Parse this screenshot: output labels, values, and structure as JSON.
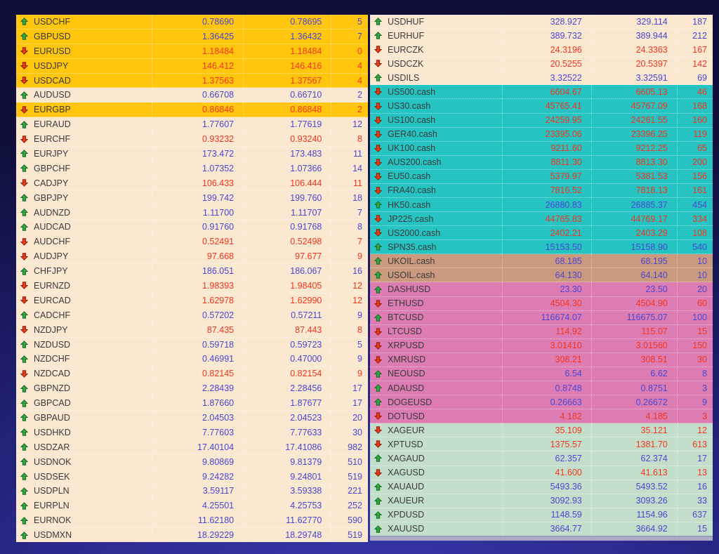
{
  "colors": {
    "gold": "#ffc60d",
    "cream": "#fae8d1",
    "teal": "#25c3c1",
    "tan": "#cb9a7e",
    "pink": "#dc7cb3",
    "mint": "#c3decb",
    "up": "#4946d4",
    "down": "#f4351d",
    "symbol": "#3a3a3a",
    "arrow_up_fill": "#33a643",
    "arrow_up_edge": "#156a22",
    "arrow_down_fill": "#e83a17",
    "arrow_down_edge": "#8f1d05"
  },
  "tables": {
    "left": {
      "rows": [
        {
          "symbol": "USDCHF",
          "bid": "0.78690",
          "ask": "0.78695",
          "spread": "5",
          "dir": "up",
          "bg": "gold"
        },
        {
          "symbol": "GBPUSD",
          "bid": "1.36425",
          "ask": "1.36432",
          "spread": "7",
          "dir": "up",
          "bg": "gold"
        },
        {
          "symbol": "EURUSD",
          "bid": "1.18484",
          "ask": "1.18484",
          "spread": "0",
          "dir": "down",
          "bg": "gold"
        },
        {
          "symbol": "USDJPY",
          "bid": "146.412",
          "ask": "146.416",
          "spread": "4",
          "dir": "down",
          "bg": "gold"
        },
        {
          "symbol": "USDCAD",
          "bid": "1.37563",
          "ask": "1.37567",
          "spread": "4",
          "dir": "down",
          "bg": "gold"
        },
        {
          "symbol": "AUDUSD",
          "bid": "0.66708",
          "ask": "0.66710",
          "spread": "2",
          "dir": "up",
          "bg": "cream"
        },
        {
          "symbol": "EURGBP",
          "bid": "0.86846",
          "ask": "0.86848",
          "spread": "2",
          "dir": "down",
          "bg": "gold"
        },
        {
          "symbol": "EURAUD",
          "bid": "1.77607",
          "ask": "1.77619",
          "spread": "12",
          "dir": "up",
          "bg": "cream"
        },
        {
          "symbol": "EURCHF",
          "bid": "0.93232",
          "ask": "0.93240",
          "spread": "8",
          "dir": "down",
          "bg": "cream"
        },
        {
          "symbol": "EURJPY",
          "bid": "173.472",
          "ask": "173.483",
          "spread": "11",
          "dir": "up",
          "bg": "cream"
        },
        {
          "symbol": "GBPCHF",
          "bid": "1.07352",
          "ask": "1.07366",
          "spread": "14",
          "dir": "up",
          "bg": "cream"
        },
        {
          "symbol": "CADJPY",
          "bid": "106.433",
          "ask": "106.444",
          "spread": "11",
          "dir": "down",
          "bg": "cream"
        },
        {
          "symbol": "GBPJPY",
          "bid": "199.742",
          "ask": "199.760",
          "spread": "18",
          "dir": "up",
          "bg": "cream"
        },
        {
          "symbol": "AUDNZD",
          "bid": "1.11700",
          "ask": "1.11707",
          "spread": "7",
          "dir": "up",
          "bg": "cream"
        },
        {
          "symbol": "AUDCAD",
          "bid": "0.91760",
          "ask": "0.91768",
          "spread": "8",
          "dir": "up",
          "bg": "cream"
        },
        {
          "symbol": "AUDCHF",
          "bid": "0.52491",
          "ask": "0.52498",
          "spread": "7",
          "dir": "down",
          "bg": "cream"
        },
        {
          "symbol": "AUDJPY",
          "bid": "97.668",
          "ask": "97.677",
          "spread": "9",
          "dir": "down",
          "bg": "cream"
        },
        {
          "symbol": "CHFJPY",
          "bid": "186.051",
          "ask": "186.067",
          "spread": "16",
          "dir": "up",
          "bg": "cream"
        },
        {
          "symbol": "EURNZD",
          "bid": "1.98393",
          "ask": "1.98405",
          "spread": "12",
          "dir": "down",
          "bg": "cream"
        },
        {
          "symbol": "EURCAD",
          "bid": "1.62978",
          "ask": "1.62990",
          "spread": "12",
          "dir": "down",
          "bg": "cream"
        },
        {
          "symbol": "CADCHF",
          "bid": "0.57202",
          "ask": "0.57211",
          "spread": "9",
          "dir": "up",
          "bg": "cream"
        },
        {
          "symbol": "NZDJPY",
          "bid": "87.435",
          "ask": "87.443",
          "spread": "8",
          "dir": "down",
          "bg": "cream"
        },
        {
          "symbol": "NZDUSD",
          "bid": "0.59718",
          "ask": "0.59723",
          "spread": "5",
          "dir": "up",
          "bg": "cream"
        },
        {
          "symbol": "NZDCHF",
          "bid": "0.46991",
          "ask": "0.47000",
          "spread": "9",
          "dir": "up",
          "bg": "cream"
        },
        {
          "symbol": "NZDCAD",
          "bid": "0.82145",
          "ask": "0.82154",
          "spread": "9",
          "dir": "down",
          "bg": "cream"
        },
        {
          "symbol": "GBPNZD",
          "bid": "2.28439",
          "ask": "2.28456",
          "spread": "17",
          "dir": "up",
          "bg": "cream"
        },
        {
          "symbol": "GBPCAD",
          "bid": "1.87660",
          "ask": "1.87677",
          "spread": "17",
          "dir": "up",
          "bg": "cream"
        },
        {
          "symbol": "GBPAUD",
          "bid": "2.04503",
          "ask": "2.04523",
          "spread": "20",
          "dir": "up",
          "bg": "cream"
        },
        {
          "symbol": "USDHKD",
          "bid": "7.77603",
          "ask": "7.77633",
          "spread": "30",
          "dir": "up",
          "bg": "cream"
        },
        {
          "symbol": "USDZAR",
          "bid": "17.40104",
          "ask": "17.41086",
          "spread": "982",
          "dir": "up",
          "bg": "cream"
        },
        {
          "symbol": "USDNOK",
          "bid": "9.80869",
          "ask": "9.81379",
          "spread": "510",
          "dir": "up",
          "bg": "cream"
        },
        {
          "symbol": "USDSEK",
          "bid": "9.24282",
          "ask": "9.24801",
          "spread": "519",
          "dir": "up",
          "bg": "cream"
        },
        {
          "symbol": "USDPLN",
          "bid": "3.59117",
          "ask": "3.59338",
          "spread": "221",
          "dir": "up",
          "bg": "cream"
        },
        {
          "symbol": "EURPLN",
          "bid": "4.25501",
          "ask": "4.25753",
          "spread": "252",
          "dir": "up",
          "bg": "cream"
        },
        {
          "symbol": "EURNOK",
          "bid": "11.62180",
          "ask": "11.62770",
          "spread": "590",
          "dir": "up",
          "bg": "cream"
        },
        {
          "symbol": "USDMXN",
          "bid": "18.29229",
          "ask": "18.29748",
          "spread": "519",
          "dir": "up",
          "bg": "cream"
        }
      ]
    },
    "right": {
      "rows": [
        {
          "symbol": "USDHUF",
          "bid": "328.927",
          "ask": "329.114",
          "spread": "187",
          "dir": "up",
          "bg": "cream"
        },
        {
          "symbol": "EURHUF",
          "bid": "389.732",
          "ask": "389.944",
          "spread": "212",
          "dir": "up",
          "bg": "cream"
        },
        {
          "symbol": "EURCZK",
          "bid": "24.3196",
          "ask": "24.3363",
          "spread": "167",
          "dir": "down",
          "bg": "cream"
        },
        {
          "symbol": "USDCZK",
          "bid": "20.5255",
          "ask": "20.5397",
          "spread": "142",
          "dir": "down",
          "bg": "cream"
        },
        {
          "symbol": "USDILS",
          "bid": "3.32522",
          "ask": "3.32591",
          "spread": "69",
          "dir": "up",
          "bg": "cream"
        },
        {
          "symbol": "US500.cash",
          "bid": "6604.67",
          "ask": "6605.13",
          "spread": "46",
          "dir": "down",
          "bg": "teal"
        },
        {
          "symbol": "US30.cash",
          "bid": "45765.41",
          "ask": "45767.09",
          "spread": "168",
          "dir": "down",
          "bg": "teal"
        },
        {
          "symbol": "US100.cash",
          "bid": "24259.95",
          "ask": "24261.55",
          "spread": "160",
          "dir": "down",
          "bg": "teal"
        },
        {
          "symbol": "GER40.cash",
          "bid": "23395.06",
          "ask": "23396.25",
          "spread": "119",
          "dir": "down",
          "bg": "teal"
        },
        {
          "symbol": "UK100.cash",
          "bid": "9211.60",
          "ask": "9212.25",
          "spread": "65",
          "dir": "down",
          "bg": "teal"
        },
        {
          "symbol": "AUS200.cash",
          "bid": "8811.30",
          "ask": "8813.30",
          "spread": "200",
          "dir": "down",
          "bg": "teal"
        },
        {
          "symbol": "EU50.cash",
          "bid": "5379.97",
          "ask": "5381.53",
          "spread": "156",
          "dir": "down",
          "bg": "teal"
        },
        {
          "symbol": "FRA40.cash",
          "bid": "7816.52",
          "ask": "7818.13",
          "spread": "161",
          "dir": "down",
          "bg": "teal"
        },
        {
          "symbol": "HK50.cash",
          "bid": "26880.83",
          "ask": "26885.37",
          "spread": "454",
          "dir": "up",
          "bg": "teal"
        },
        {
          "symbol": "JP225.cash",
          "bid": "44765.83",
          "ask": "44769.17",
          "spread": "334",
          "dir": "down",
          "bg": "teal"
        },
        {
          "symbol": "US2000.cash",
          "bid": "2402.21",
          "ask": "2403.29",
          "spread": "108",
          "dir": "down",
          "bg": "teal"
        },
        {
          "symbol": "SPN35.cash",
          "bid": "15153.50",
          "ask": "15158.90",
          "spread": "540",
          "dir": "up",
          "bg": "teal"
        },
        {
          "symbol": "UKOIL.cash",
          "bid": "68.185",
          "ask": "68.195",
          "spread": "10",
          "dir": "up",
          "bg": "tan"
        },
        {
          "symbol": "USOIL.cash",
          "bid": "64.130",
          "ask": "64.140",
          "spread": "10",
          "dir": "up",
          "bg": "tan"
        },
        {
          "symbol": "DASHUSD",
          "bid": "23.30",
          "ask": "23.50",
          "spread": "20",
          "dir": "up",
          "bg": "pink"
        },
        {
          "symbol": "ETHUSD",
          "bid": "4504.30",
          "ask": "4504.90",
          "spread": "60",
          "dir": "down",
          "bg": "pink"
        },
        {
          "symbol": "BTCUSD",
          "bid": "116674.07",
          "ask": "116675.07",
          "spread": "100",
          "dir": "up",
          "bg": "pink"
        },
        {
          "symbol": "LTCUSD",
          "bid": "114.92",
          "ask": "115.07",
          "spread": "15",
          "dir": "down",
          "bg": "pink"
        },
        {
          "symbol": "XRPUSD",
          "bid": "3.01410",
          "ask": "3.01560",
          "spread": "150",
          "dir": "down",
          "bg": "pink"
        },
        {
          "symbol": "XMRUSD",
          "bid": "308.21",
          "ask": "308.51",
          "spread": "30",
          "dir": "down",
          "bg": "pink"
        },
        {
          "symbol": "NEOUSD",
          "bid": "6.54",
          "ask": "6.62",
          "spread": "8",
          "dir": "up",
          "bg": "pink"
        },
        {
          "symbol": "ADAUSD",
          "bid": "0.8748",
          "ask": "0.8751",
          "spread": "3",
          "dir": "up",
          "bg": "pink"
        },
        {
          "symbol": "DOGEUSD",
          "bid": "0.26663",
          "ask": "0.26672",
          "spread": "9",
          "dir": "up",
          "bg": "pink"
        },
        {
          "symbol": "DOTUSD",
          "bid": "4.182",
          "ask": "4.185",
          "spread": "3",
          "dir": "down",
          "bg": "pink"
        },
        {
          "symbol": "XAGEUR",
          "bid": "35.109",
          "ask": "35.121",
          "spread": "12",
          "dir": "down",
          "bg": "mint"
        },
        {
          "symbol": "XPTUSD",
          "bid": "1375.57",
          "ask": "1381.70",
          "spread": "613",
          "dir": "down",
          "bg": "mint"
        },
        {
          "symbol": "XAGAUD",
          "bid": "62.357",
          "ask": "62.374",
          "spread": "17",
          "dir": "up",
          "bg": "mint"
        },
        {
          "symbol": "XAGUSD",
          "bid": "41.600",
          "ask": "41.613",
          "spread": "13",
          "dir": "down",
          "bg": "mint"
        },
        {
          "symbol": "XAUAUD",
          "bid": "5493.36",
          "ask": "5493.52",
          "spread": "16",
          "dir": "up",
          "bg": "mint"
        },
        {
          "symbol": "XAUEUR",
          "bid": "3092.93",
          "ask": "3093.26",
          "spread": "33",
          "dir": "up",
          "bg": "mint"
        },
        {
          "symbol": "XPDUSD",
          "bid": "1148.59",
          "ask": "1154.96",
          "spread": "637",
          "dir": "up",
          "bg": "mint"
        },
        {
          "symbol": "XAUUSD",
          "bid": "3664.77",
          "ask": "3664.92",
          "spread": "15",
          "dir": "up",
          "bg": "mint"
        }
      ]
    }
  }
}
